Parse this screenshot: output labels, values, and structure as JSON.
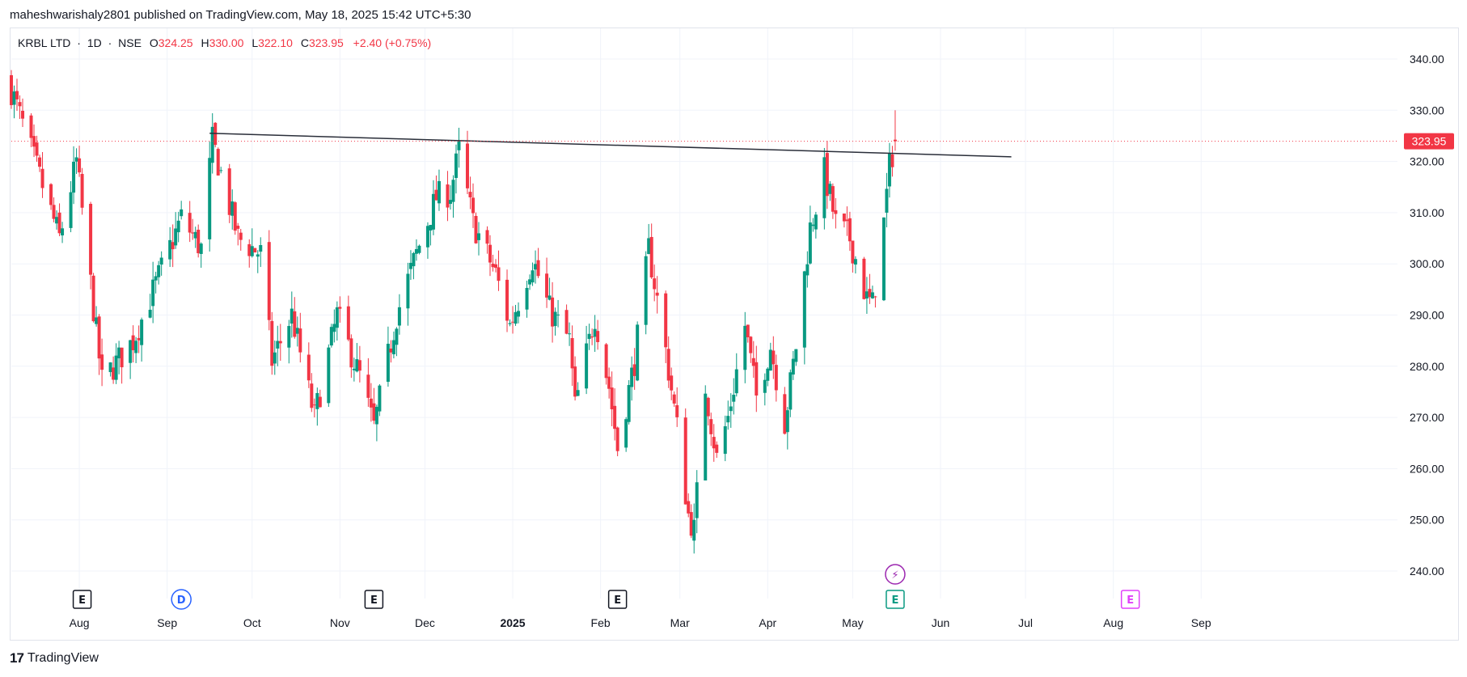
{
  "header": {
    "published": "maheshwarishaly2801 published on TradingView.com, May 18, 2025 15:42 UTC+5:30"
  },
  "legend": {
    "symbol": "KRBL LTD",
    "interval": "1D",
    "exchange": "NSE",
    "sep": "·",
    "o_label": "O",
    "o": "324.25",
    "h_label": "H",
    "h": "330.00",
    "l_label": "L",
    "l": "322.10",
    "c_label": "C",
    "c": "323.95",
    "change": "+2.40 (+0.75%)"
  },
  "footer": {
    "logo": "17",
    "brand": "TradingView"
  },
  "colors": {
    "up": "#089981",
    "down": "#f23645",
    "trendline": "#2a2e39",
    "grid": "#f0f3fa",
    "price_tag": "#f23645"
  },
  "chart_data": {
    "type": "candlestick",
    "symbol": "KRBL LTD",
    "interval": "1D",
    "exchange": "NSE",
    "last_price": "323.95",
    "price_axis_labels": [
      "340.00",
      "330.00",
      "320.00",
      "310.00",
      "300.00",
      "290.00",
      "280.00",
      "270.00",
      "260.00",
      "250.00",
      "240.00"
    ],
    "y_range": [
      240,
      340
    ],
    "time_axis_labels": [
      "Aug",
      "Sep",
      "Oct",
      "Nov",
      "Dec",
      "2025",
      "Feb",
      "Mar",
      "Apr",
      "May",
      "Jun",
      "Jul",
      "Aug",
      "Sep"
    ],
    "x_range": [
      "2024-07-08",
      "2025-09-30"
    ],
    "grid": true,
    "trendline": {
      "from": {
        "date": "2024-09-16",
        "price": 325.5
      },
      "to": {
        "date": "2025-06-26",
        "price": 320.9
      }
    },
    "event_markers": [
      {
        "type": "earnings",
        "label": "E",
        "date": "2024-08-02",
        "color": "#131722"
      },
      {
        "type": "dividend",
        "label": "D",
        "date": "2024-09-06",
        "color": "#2962ff"
      },
      {
        "type": "earnings",
        "label": "E",
        "date": "2024-11-13",
        "color": "#131722"
      },
      {
        "type": "earnings",
        "label": "E",
        "date": "2025-02-07",
        "color": "#131722"
      },
      {
        "type": "earnings",
        "label": "E",
        "date": "2025-05-16",
        "color": "#089981"
      },
      {
        "type": "split",
        "label": "⚡",
        "date": "2025-05-16",
        "color": "#9c27b0"
      },
      {
        "type": "earnings",
        "label": "E",
        "date": "2025-08-07",
        "color": "#e040fb"
      }
    ],
    "key_points": [
      {
        "date": "2024-07-08",
        "close": 334
      },
      {
        "date": "2024-07-25",
        "close": 305
      },
      {
        "date": "2024-07-31",
        "close": 320
      },
      {
        "date": "2024-08-09",
        "close": 277
      },
      {
        "date": "2024-08-20",
        "close": 285
      },
      {
        "date": "2024-08-28",
        "close": 296
      },
      {
        "date": "2024-09-06",
        "close": 309
      },
      {
        "date": "2024-09-13",
        "close": 303
      },
      {
        "date": "2024-09-17",
        "close": 324
      },
      {
        "date": "2024-09-26",
        "close": 305
      },
      {
        "date": "2024-10-04",
        "close": 302
      },
      {
        "date": "2024-10-08",
        "close": 281
      },
      {
        "date": "2024-10-15",
        "close": 290
      },
      {
        "date": "2024-10-23",
        "close": 270
      },
      {
        "date": "2024-10-31",
        "close": 290
      },
      {
        "date": "2024-11-08",
        "close": 278
      },
      {
        "date": "2024-11-13",
        "close": 268
      },
      {
        "date": "2024-11-21",
        "close": 290
      },
      {
        "date": "2024-11-28",
        "close": 302
      },
      {
        "date": "2024-12-05",
        "close": 313
      },
      {
        "date": "2024-12-10",
        "close": 314
      },
      {
        "date": "2024-12-13",
        "close": 322
      },
      {
        "date": "2024-12-18",
        "close": 308
      },
      {
        "date": "2024-12-26",
        "close": 298
      },
      {
        "date": "2024-12-31",
        "close": 288
      },
      {
        "date": "2025-01-08",
        "close": 301
      },
      {
        "date": "2025-01-14",
        "close": 291
      },
      {
        "date": "2025-01-21",
        "close": 285
      },
      {
        "date": "2025-01-23",
        "close": 272
      },
      {
        "date": "2025-01-30",
        "close": 290
      },
      {
        "date": "2025-02-04",
        "close": 276
      },
      {
        "date": "2025-02-07",
        "close": 264
      },
      {
        "date": "2025-02-13",
        "close": 281
      },
      {
        "date": "2025-02-18",
        "close": 303
      },
      {
        "date": "2025-02-24",
        "close": 283
      },
      {
        "date": "2025-02-28",
        "close": 268
      },
      {
        "date": "2025-03-04",
        "close": 251
      },
      {
        "date": "2025-03-06",
        "close": 248
      },
      {
        "date": "2025-03-10",
        "close": 276
      },
      {
        "date": "2025-03-14",
        "close": 262
      },
      {
        "date": "2025-03-18",
        "close": 270
      },
      {
        "date": "2025-03-24",
        "close": 288
      },
      {
        "date": "2025-03-28",
        "close": 274
      },
      {
        "date": "2025-04-02",
        "close": 284
      },
      {
        "date": "2025-04-07",
        "close": 269
      },
      {
        "date": "2025-04-11",
        "close": 284
      },
      {
        "date": "2025-04-16",
        "close": 307
      },
      {
        "date": "2025-04-21",
        "close": 318
      },
      {
        "date": "2025-04-25",
        "close": 308
      },
      {
        "date": "2025-04-30",
        "close": 305
      },
      {
        "date": "2025-05-06",
        "close": 293
      },
      {
        "date": "2025-05-08",
        "close": 292
      },
      {
        "date": "2025-05-12",
        "close": 308
      },
      {
        "date": "2025-05-14",
        "close": 319
      },
      {
        "date": "2025-05-16",
        "close": 323.95
      }
    ]
  }
}
